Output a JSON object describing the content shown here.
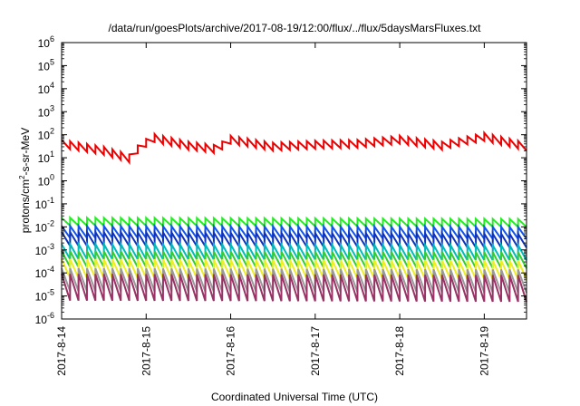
{
  "chart_data": {
    "type": "line",
    "title": "/data/run/goesPlots/archive/2017-08-19/12:00/flux/../flux/5daysMarsFluxes.txt",
    "xlabel": "Coordinated Universal Time (UTC)",
    "ylabel": {
      "prefix": "protons/cm",
      "superscript": "2",
      "suffix": "-s-sr-MeV"
    },
    "yscale": "log",
    "ylim_exponents": [
      -6,
      6
    ],
    "ytick_base": "10",
    "ytick_exponents": [
      "-6",
      "-5",
      "-4",
      "-3",
      "-2",
      "-1",
      "0",
      "1",
      "2",
      "3",
      "4",
      "5",
      "6"
    ],
    "xlim_days": [
      "2017-08-14T00:00",
      "2017-08-19T12:00"
    ],
    "xtick_labels": [
      "2017-8-14",
      "2017-8-15",
      "2017-8-16",
      "2017-8-17",
      "2017-8-18",
      "2017-8-19"
    ],
    "grid": false,
    "legend": "none",
    "series": [
      {
        "color": "#ee0000",
        "period_days": 0.1,
        "sawtooth_factor": 0.45,
        "envelope": [
          [
            "2017-08-14T00:00",
            60
          ],
          [
            "2017-08-14T12:00",
            30
          ],
          [
            "2017-08-14T19:12",
            14
          ],
          [
            "2017-08-14T22:00",
            40
          ],
          [
            "2017-08-15T02:00",
            110
          ],
          [
            "2017-08-15T12:00",
            50
          ],
          [
            "2017-08-15T20:00",
            35
          ],
          [
            "2017-08-16T00:00",
            90
          ],
          [
            "2017-08-16T12:00",
            45
          ],
          [
            "2017-08-17T00:00",
            55
          ],
          [
            "2017-08-17T12:00",
            60
          ],
          [
            "2017-08-18T00:00",
            90
          ],
          [
            "2017-08-18T12:00",
            50
          ],
          [
            "2017-08-19T00:00",
            120
          ],
          [
            "2017-08-19T12:00",
            45
          ]
        ]
      },
      {
        "color": "#22ee22",
        "period_days": 0.1,
        "sawtooth_factor": 0.45,
        "envelope": [
          [
            "2017-08-14T00:00",
            0.025
          ],
          [
            "2017-08-19T12:00",
            0.022
          ]
        ]
      },
      {
        "color": "#1155ee",
        "period_days": 0.1,
        "sawtooth_factor": 0.3,
        "envelope": [
          [
            "2017-08-14T00:00",
            0.011
          ],
          [
            "2017-08-19T12:00",
            0.01
          ]
        ]
      },
      {
        "color": "#1133bb",
        "period_days": 0.1,
        "sawtooth_factor": 0.25,
        "envelope": [
          [
            "2017-08-14T00:00",
            0.006
          ],
          [
            "2017-08-19T12:00",
            0.005
          ]
        ]
      },
      {
        "color": "#00bbbb",
        "period_days": 0.1,
        "sawtooth_factor": 0.22,
        "envelope": [
          [
            "2017-08-14T00:00",
            0.0018
          ],
          [
            "2017-08-19T12:00",
            0.0016
          ]
        ]
      },
      {
        "color": "#33cc33",
        "period_days": 0.1,
        "sawtooth_factor": 0.2,
        "envelope": [
          [
            "2017-08-14T00:00",
            0.0009
          ],
          [
            "2017-08-19T12:00",
            0.0008
          ]
        ]
      },
      {
        "color": "#eeee22",
        "period_days": 0.1,
        "sawtooth_factor": 0.15,
        "envelope": [
          [
            "2017-08-14T00:00",
            0.0004
          ],
          [
            "2017-08-19T12:00",
            0.00035
          ]
        ]
      },
      {
        "color": "#999999",
        "period_days": 0.1,
        "sawtooth_factor": 0.1,
        "envelope": [
          [
            "2017-08-14T00:00",
            0.00016
          ],
          [
            "2017-08-19T12:00",
            0.00014
          ]
        ]
      },
      {
        "color": "#993366",
        "period_days": 0.1,
        "sawtooth_factor": 0.07,
        "envelope": [
          [
            "2017-08-14T00:00",
            9e-05
          ],
          [
            "2017-08-19T12:00",
            8e-05
          ]
        ]
      }
    ]
  }
}
